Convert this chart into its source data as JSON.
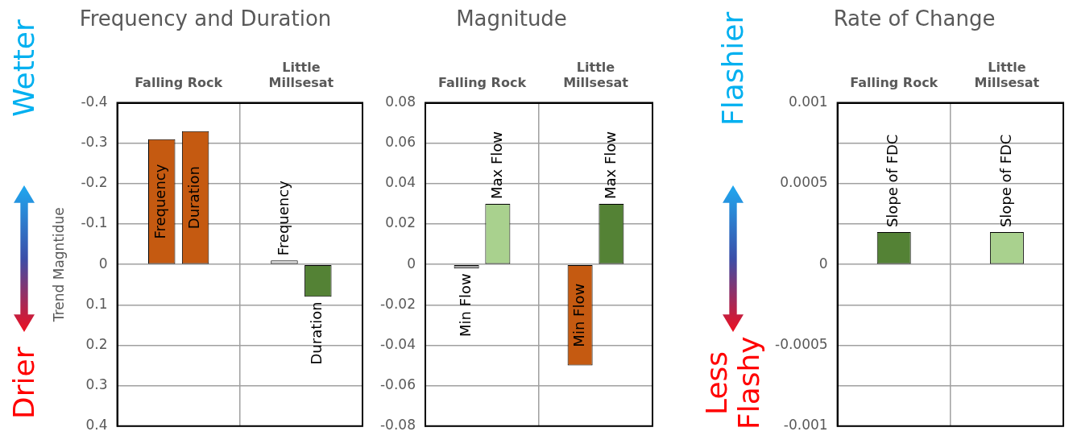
{
  "chart_data": [
    {
      "type": "bar",
      "title": "Frequency and Duration",
      "ylabel": "Trend Magntidue",
      "categories": [
        "Falling Rock",
        "Little Millsesat"
      ],
      "series": [
        {
          "name": "Frequency",
          "colors": [
            "#c55a11",
            "#d9d9d9"
          ],
          "values": [
            -0.31,
            -0.01
          ]
        },
        {
          "name": "Duration",
          "colors": [
            "#c55a11",
            "#548235"
          ],
          "values": [
            -0.33,
            0.08
          ]
        }
      ],
      "ylim": [
        0.4,
        -0.4
      ],
      "yticks": [
        -0.4,
        -0.3,
        -0.2,
        -0.1,
        0,
        0.1,
        0.2,
        0.3,
        0.4
      ],
      "grid": true,
      "legend": false,
      "annotations": [
        "Wetter",
        "Drier"
      ]
    },
    {
      "type": "bar",
      "title": "Magnitude",
      "categories": [
        "Falling Rock",
        "Little Millsesat"
      ],
      "series": [
        {
          "name": "Min Flow",
          "colors": [
            "#a6a6a6",
            "#c55a11"
          ],
          "values": [
            -0.002,
            -0.05
          ]
        },
        {
          "name": "Max Flow",
          "colors": [
            "#a9d18e",
            "#548235"
          ],
          "values": [
            0.03,
            0.03
          ]
        }
      ],
      "ylim": [
        -0.08,
        0.08
      ],
      "yticks": [
        -0.08,
        -0.06,
        -0.04,
        -0.02,
        0,
        0.02,
        0.04,
        0.06,
        0.08
      ],
      "grid": true,
      "legend": false
    },
    {
      "type": "bar",
      "title": "Rate of Change",
      "categories": [
        "Falling Rock",
        "Little Millsesat"
      ],
      "series": [
        {
          "name": "Slope of FDC",
          "colors": [
            "#548235",
            "#a9d18e"
          ],
          "values": [
            0.0002,
            0.0002
          ]
        }
      ],
      "ylim": [
        -0.001,
        0.001
      ],
      "yticks": [
        -0.001,
        {
          "value": -0.00075,
          "label": null
        },
        -0.0005,
        {
          "value": -0.00025,
          "label": null
        },
        0,
        {
          "value": 0.00025,
          "label": null
        },
        0.0005,
        {
          "value": 0.00075,
          "label": null
        },
        0.001
      ],
      "grid": true,
      "legend": false,
      "annotations": [
        "Flashier",
        "Less Flashy"
      ]
    }
  ]
}
